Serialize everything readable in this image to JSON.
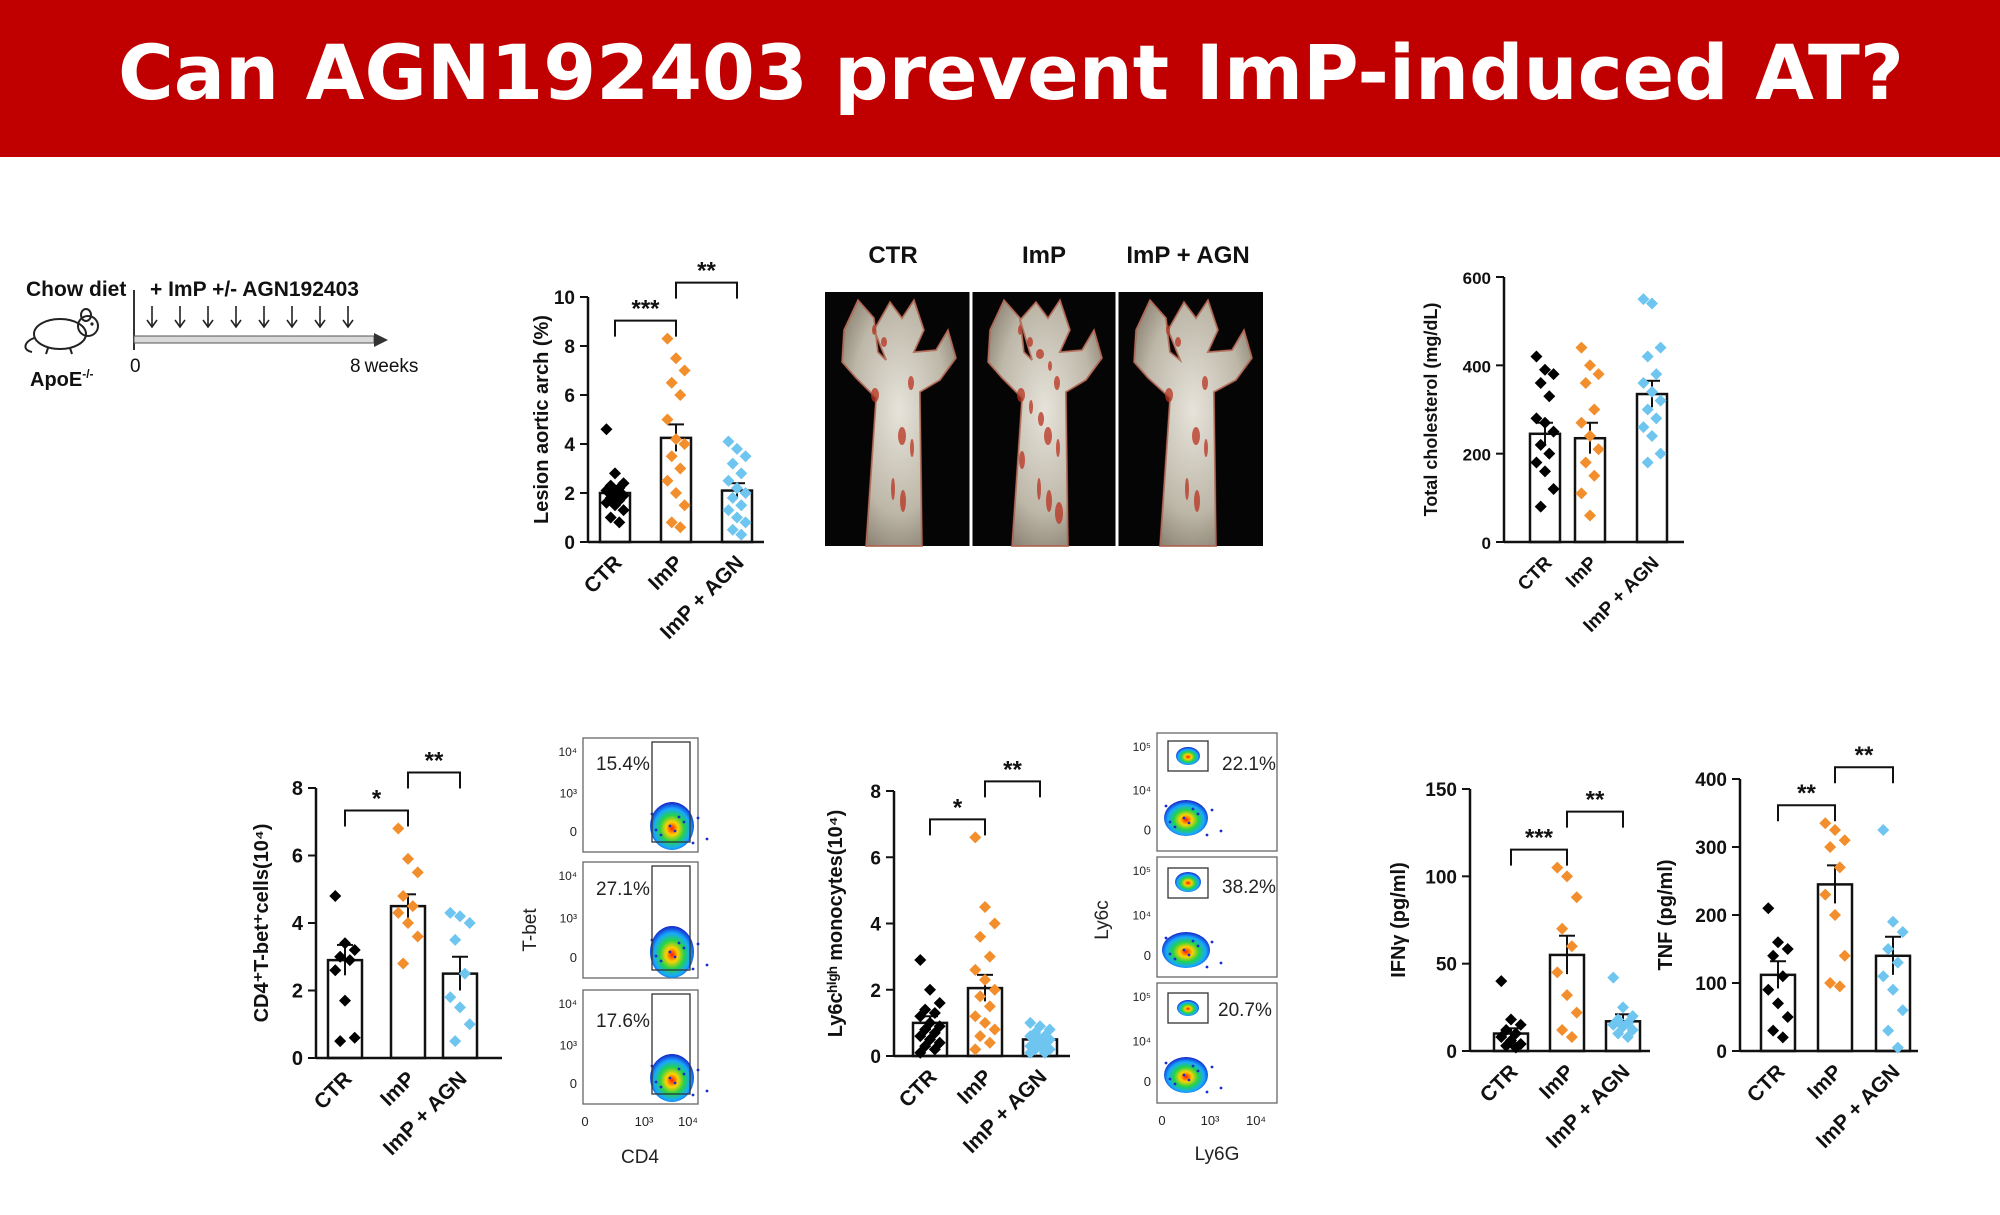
{
  "title": "Can AGN192403 prevent ImP-induced AT?",
  "colors": {
    "banner": "#c00000",
    "ctr": "#000000",
    "imp": "#f28e2b",
    "agn": "#6ec6f0"
  },
  "schematic": {
    "diet_label": "Chow diet",
    "treatment_label": "+ ImP +/- AGN192403",
    "mouse_label": "ApoE",
    "mouse_superscript": "-/-",
    "start_label": "0",
    "end_label": "8",
    "unit_label": "weeks",
    "icon": "mouse-icon"
  },
  "micrograph": {
    "labels": [
      "CTR",
      "ImP",
      "ImP + AGN"
    ]
  },
  "flow_tbet": {
    "y_label": "T-bet",
    "x_label": "CD4",
    "y_ticks": [
      "10⁴",
      "10³",
      "0"
    ],
    "x_ticks": [
      "0",
      "10³",
      "10⁴"
    ],
    "percentages": [
      "15.4%",
      "27.1%",
      "17.6%"
    ]
  },
  "flow_ly6c": {
    "y_label": "Ly6c",
    "x_label": "Ly6G",
    "y_ticks": [
      "10⁵",
      "10⁴",
      "0"
    ],
    "x_ticks": [
      "0",
      "10³",
      "10⁴"
    ],
    "percentages": [
      "22.1%",
      "38.2%",
      "20.7%"
    ]
  },
  "chart_data": [
    {
      "type": "bar",
      "categories": [
        "CTR",
        "ImP",
        "ImP + AGN"
      ],
      "ylabel": "Lesion aortic arch (%)",
      "ylim": [
        0,
        10
      ],
      "yticks": [
        0,
        2,
        4,
        6,
        8,
        10
      ],
      "means": [
        2.0,
        4.25,
        2.1
      ],
      "sem": [
        0.25,
        0.55,
        0.3
      ],
      "points": [
        [
          4.6,
          2.8,
          2.4,
          2.3,
          2.2,
          2.1,
          2.0,
          1.9,
          1.8,
          1.7,
          1.6,
          1.5,
          1.3,
          1.0,
          0.8
        ],
        [
          8.3,
          7.5,
          7.0,
          6.5,
          6.0,
          5.0,
          4.2,
          4.0,
          3.5,
          3.0,
          2.5,
          2.0,
          1.5,
          0.8,
          0.6
        ],
        [
          4.1,
          3.8,
          3.5,
          3.2,
          2.8,
          2.5,
          2.2,
          2.0,
          1.8,
          1.5,
          1.3,
          1.0,
          0.8,
          0.5,
          0.3
        ]
      ],
      "significance": [
        {
          "from": 0,
          "to": 1,
          "label": "***"
        },
        {
          "from": 1,
          "to": 2,
          "label": "**"
        }
      ]
    },
    {
      "type": "bar",
      "categories": [
        "CTR",
        "ImP",
        "ImP + AGN"
      ],
      "ylabel": "Total cholesterol (mg/dL)",
      "ylim": [
        0,
        600
      ],
      "yticks": [
        0,
        200,
        400,
        600
      ],
      "means": [
        245,
        235,
        335
      ],
      "sem": [
        25,
        35,
        30
      ],
      "points": [
        [
          420,
          390,
          380,
          360,
          330,
          280,
          270,
          250,
          220,
          200,
          180,
          160,
          120,
          80
        ],
        [
          440,
          400,
          380,
          360,
          300,
          270,
          240,
          210,
          180,
          150,
          110,
          60
        ],
        [
          550,
          540,
          440,
          420,
          380,
          360,
          340,
          320,
          300,
          280,
          260,
          240,
          200,
          180
        ]
      ],
      "significance": []
    },
    {
      "type": "bar",
      "categories": [
        "CTR",
        "ImP",
        "ImP + AGN"
      ],
      "ylabel": "CD4⁺T-bet⁺cells(10⁴)",
      "ylim": [
        0,
        8
      ],
      "yticks": [
        0,
        2,
        4,
        6,
        8
      ],
      "means": [
        2.9,
        4.5,
        2.5
      ],
      "sem": [
        0.45,
        0.35,
        0.5
      ],
      "points": [
        [
          4.8,
          3.4,
          3.2,
          3.0,
          2.9,
          2.6,
          1.7,
          0.6,
          0.5
        ],
        [
          6.8,
          5.9,
          5.5,
          4.8,
          4.5,
          4.3,
          4.0,
          3.6,
          2.8
        ],
        [
          4.3,
          4.2,
          4.0,
          3.5,
          2.5,
          1.8,
          1.5,
          1.0,
          0.5
        ]
      ],
      "significance": [
        {
          "from": 0,
          "to": 1,
          "label": "*"
        },
        {
          "from": 1,
          "to": 2,
          "label": "**"
        }
      ]
    },
    {
      "type": "bar",
      "categories": [
        "CTR",
        "ImP",
        "ImP + AGN"
      ],
      "ylabel": "Ly6cʰⁱᵍʰ monocytes(10⁴)",
      "ylim": [
        0,
        8
      ],
      "yticks": [
        0,
        2,
        4,
        6,
        8
      ],
      "means": [
        1.0,
        2.05,
        0.5
      ],
      "sem": [
        0.2,
        0.4,
        0.08
      ],
      "points": [
        [
          2.9,
          2.0,
          1.6,
          1.4,
          1.3,
          1.2,
          1.0,
          0.9,
          0.8,
          0.7,
          0.6,
          0.5,
          0.4,
          0.3,
          0.2,
          0.1
        ],
        [
          6.6,
          4.5,
          4.0,
          3.6,
          3.0,
          2.6,
          2.3,
          2.0,
          1.8,
          1.5,
          1.2,
          1.0,
          0.8,
          0.6,
          0.4,
          0.2
        ],
        [
          1.0,
          0.9,
          0.8,
          0.7,
          0.6,
          0.6,
          0.5,
          0.5,
          0.4,
          0.4,
          0.3,
          0.3,
          0.2,
          0.2,
          0.1,
          0.1
        ]
      ],
      "significance": [
        {
          "from": 0,
          "to": 1,
          "label": "*"
        },
        {
          "from": 1,
          "to": 2,
          "label": "**"
        }
      ]
    },
    {
      "type": "bar",
      "categories": [
        "CTR",
        "ImP",
        "ImP + AGN"
      ],
      "ylabel": "IFNγ (pg/ml)",
      "ylim": [
        0,
        150
      ],
      "yticks": [
        0,
        50,
        100,
        150
      ],
      "means": [
        10,
        55,
        17
      ],
      "sem": [
        3,
        11,
        4
      ],
      "points": [
        [
          40,
          18,
          15,
          12,
          10,
          8,
          6,
          4,
          3,
          2
        ],
        [
          105,
          100,
          88,
          70,
          60,
          45,
          32,
          22,
          12,
          8
        ],
        [
          42,
          25,
          20,
          18,
          16,
          15,
          14,
          12,
          10,
          8
        ]
      ],
      "significance": [
        {
          "from": 0,
          "to": 1,
          "label": "***"
        },
        {
          "from": 1,
          "to": 2,
          "label": "**"
        }
      ]
    },
    {
      "type": "bar",
      "categories": [
        "CTR",
        "ImP",
        "ImP + AGN"
      ],
      "ylabel": "TNF (pg/ml)",
      "ylim": [
        0,
        400
      ],
      "yticks": [
        0,
        100,
        200,
        300,
        400
      ],
      "means": [
        112,
        245,
        140
      ],
      "sem": [
        20,
        28,
        28
      ],
      "points": [
        [
          210,
          160,
          150,
          140,
          110,
          90,
          70,
          50,
          30,
          20
        ],
        [
          335,
          325,
          310,
          300,
          270,
          230,
          200,
          140,
          100,
          95
        ],
        [
          325,
          190,
          175,
          150,
          130,
          110,
          90,
          60,
          30,
          5
        ]
      ],
      "significance": [
        {
          "from": 0,
          "to": 1,
          "label": "**"
        },
        {
          "from": 1,
          "to": 2,
          "label": "**"
        }
      ]
    }
  ]
}
